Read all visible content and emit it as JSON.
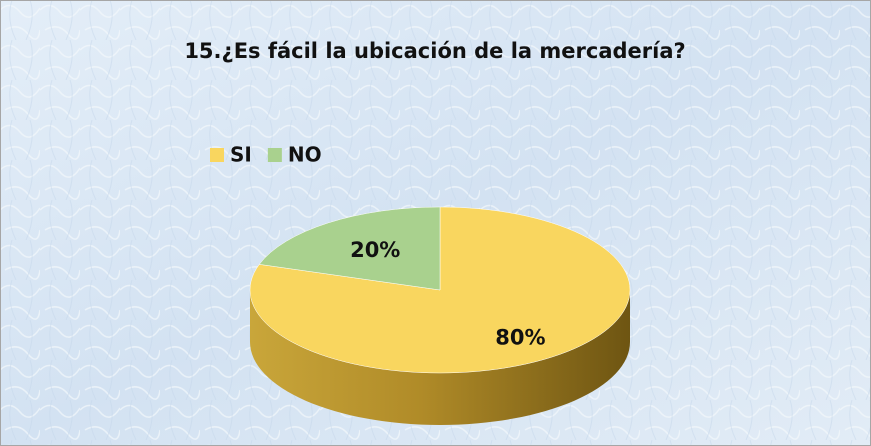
{
  "chart_data": {
    "type": "pie",
    "three_d": true,
    "title": "15.¿Es fácil la ubicación de la mercadería?",
    "categories": [
      "SI",
      "NO"
    ],
    "values": [
      80,
      20
    ],
    "value_labels": [
      "80%",
      "20%"
    ],
    "colors": [
      "#f9d65f",
      "#a9d18e"
    ],
    "legend": "top-left"
  }
}
